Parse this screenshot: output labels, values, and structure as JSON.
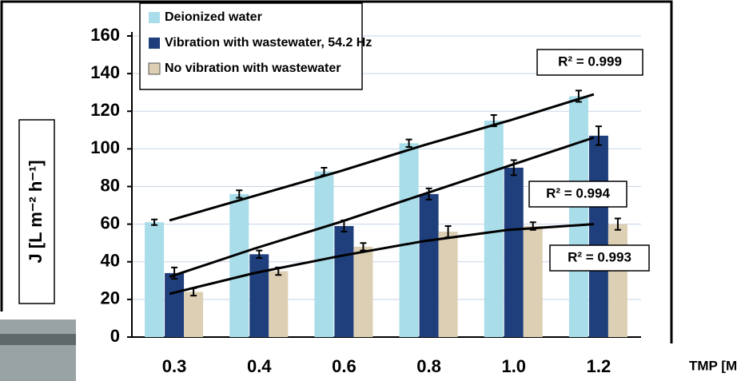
{
  "chart_data": {
    "type": "bar",
    "y_label": "J [L m⁻² h⁻¹]",
    "x_label": "TMP [MPa]",
    "categories": [
      "0.3",
      "0.4",
      "0.6",
      "0.8",
      "1.0",
      "1.2"
    ],
    "series": [
      {
        "name": "Deionized water",
        "color": "#a9dde9",
        "values": [
          61,
          76,
          88,
          103,
          115,
          128
        ],
        "errors": [
          1.5,
          2,
          2,
          2,
          3,
          3
        ]
      },
      {
        "name": "Vibration with wastewater, 54.2 Hz",
        "color": "#1f3f7c",
        "values": [
          34,
          44,
          59,
          76,
          90,
          107
        ],
        "errors": [
          3,
          2,
          3,
          3,
          4,
          5
        ]
      },
      {
        "name": "No vibration with wastewater",
        "color": "#dccfb3",
        "values": [
          24,
          35,
          48,
          56,
          59,
          60
        ],
        "errors": [
          2,
          2,
          2,
          3,
          2,
          3
        ]
      }
    ],
    "trendlines": [
      {
        "label": "R² = 0.999",
        "values": [
          62,
          75,
          88,
          102,
          115,
          129
        ]
      },
      {
        "label": "R² = 0.994",
        "values": [
          32,
          47,
          61,
          76,
          91,
          106
        ]
      },
      {
        "label": "R² = 0.993",
        "values": [
          23,
          34,
          43,
          51,
          57,
          60
        ]
      }
    ],
    "ylim": [
      0,
      160
    ],
    "yticks": [
      0,
      20,
      40,
      60,
      80,
      100,
      120,
      140,
      160
    ],
    "grid": true
  }
}
